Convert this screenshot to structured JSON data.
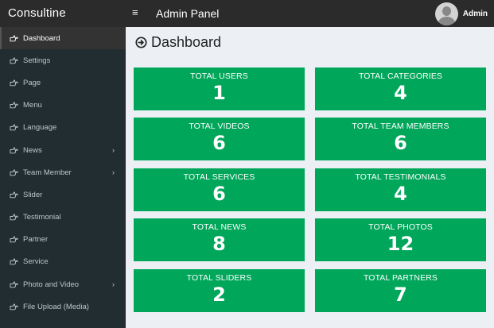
{
  "brand": "Consultine",
  "header": {
    "toggle_icon": "≡",
    "title": "Admin Panel",
    "user_name": "Admin"
  },
  "sidebar": {
    "items": [
      {
        "label": "Dashboard",
        "icon": "hand-right-icon",
        "active": true
      },
      {
        "label": "Settings",
        "icon": "hand-right-icon"
      },
      {
        "label": "Page",
        "icon": "hand-right-icon"
      },
      {
        "label": "Menu",
        "icon": "hand-right-icon"
      },
      {
        "label": "Language",
        "icon": "hand-right-icon"
      },
      {
        "label": "News",
        "icon": "hand-right-icon",
        "arrow": "›"
      },
      {
        "label": "Team Member",
        "icon": "hand-right-icon",
        "arrow": "›"
      },
      {
        "label": "Slider",
        "icon": "hand-right-icon"
      },
      {
        "label": "Testimonial",
        "icon": "hand-right-icon"
      },
      {
        "label": "Partner",
        "icon": "hand-right-icon"
      },
      {
        "label": "Service",
        "icon": "hand-right-icon"
      },
      {
        "label": "Photo and Video",
        "icon": "hand-right-icon",
        "arrow": "›"
      },
      {
        "label": "File Upload (Media)",
        "icon": "hand-right-icon"
      }
    ]
  },
  "main": {
    "title": "Dashboard",
    "title_icon": "arrow-circle-right-icon",
    "box_color": "#00a65a",
    "stats": [
      {
        "label": "TOTAL USERS",
        "value": "1"
      },
      {
        "label": "TOTAL CATEGORIES",
        "value": "4"
      },
      {
        "label": "TOTAL VIDEOS",
        "value": "6"
      },
      {
        "label": "TOTAL TEAM MEMBERS",
        "value": "6"
      },
      {
        "label": "TOTAL SERVICES",
        "value": "6"
      },
      {
        "label": "TOTAL TESTIMONIALS",
        "value": "4"
      },
      {
        "label": "TOTAL NEWS",
        "value": "8"
      },
      {
        "label": "TOTAL PHOTOS",
        "value": "12"
      },
      {
        "label": "TOTAL SLIDERS",
        "value": "2"
      },
      {
        "label": "TOTAL PARTNERS",
        "value": "7"
      }
    ]
  }
}
